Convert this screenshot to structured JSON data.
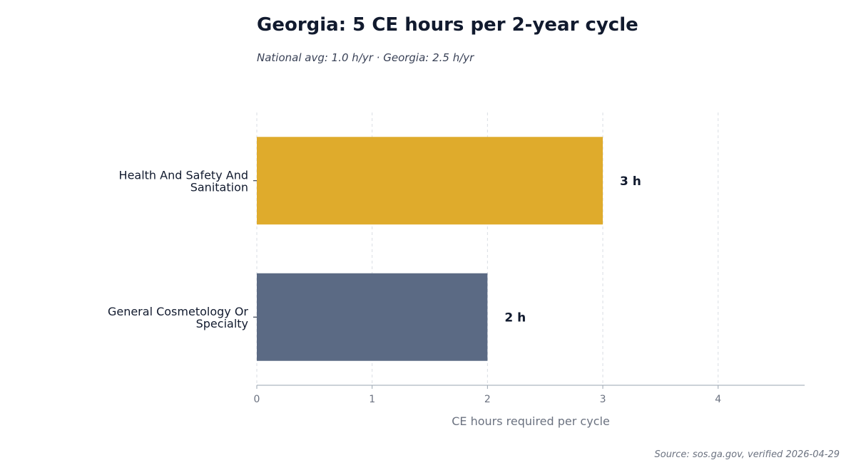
{
  "header": {
    "title": "Georgia: 5 CE hours per 2-year cycle",
    "subtitle": "National avg: 1.0 h/yr · Georgia: 2.5 h/yr"
  },
  "footer": {
    "source": "Source: sos.ga.gov, verified 2026-04-29"
  },
  "chart_data": {
    "type": "bar",
    "orientation": "horizontal",
    "title": "Georgia: 5 CE hours per 2-year cycle",
    "subtitle": "National avg: 1.0 h/yr · Georgia: 2.5 h/yr",
    "categories": [
      [
        "Health And Safety And",
        "Sanitation"
      ],
      [
        "General Cosmetology Or",
        "Specialty"
      ]
    ],
    "values": [
      3,
      2
    ],
    "data_labels": [
      "3 h",
      "2 h"
    ],
    "bar_colors": [
      "#dfab2c",
      "#5b6a84"
    ],
    "xlabel": "CE hours required per cycle",
    "ylabel": "",
    "xlim": [
      0,
      4.75
    ],
    "xticks": [
      0,
      1,
      2,
      3,
      4
    ],
    "grid": "vertical dashed"
  }
}
